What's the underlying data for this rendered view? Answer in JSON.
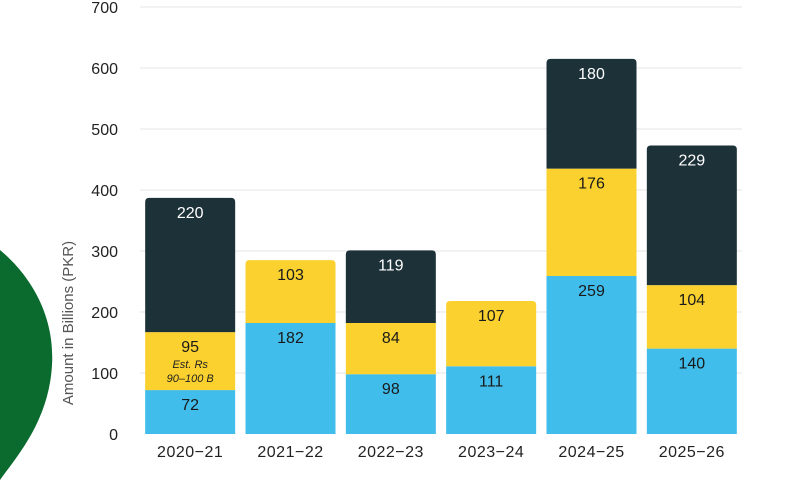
{
  "chart_data": {
    "type": "bar",
    "stacked": true,
    "categories": [
      "2020−21",
      "2021−22",
      "2022−23",
      "2023−24",
      "2024−25",
      "2025−26"
    ],
    "series": [
      {
        "values": [
          72,
          182,
          98,
          111,
          259,
          140
        ],
        "color": "#41BDEB",
        "label_color": "#1a1a1a"
      },
      {
        "values": [
          95,
          103,
          84,
          107,
          176,
          104
        ],
        "color": "#FAD12E",
        "label_color": "#1a1a1a"
      },
      {
        "values": [
          220,
          0,
          119,
          0,
          180,
          229
        ],
        "color": "#1D3139",
        "label_color": "#ffffff"
      }
    ],
    "ylabel": "Amount in Billions (PKR)",
    "xlabel": "",
    "ylim": [
      0,
      700
    ],
    "yticks": [
      0,
      100,
      200,
      300,
      400,
      500,
      600,
      700
    ],
    "grid": true,
    "annotations": [
      {
        "category_index": 0,
        "series_index": 1,
        "lines": [
          "Est. Rs",
          "90–100 B"
        ]
      }
    ],
    "decoration_color": "#0B6B2F"
  }
}
